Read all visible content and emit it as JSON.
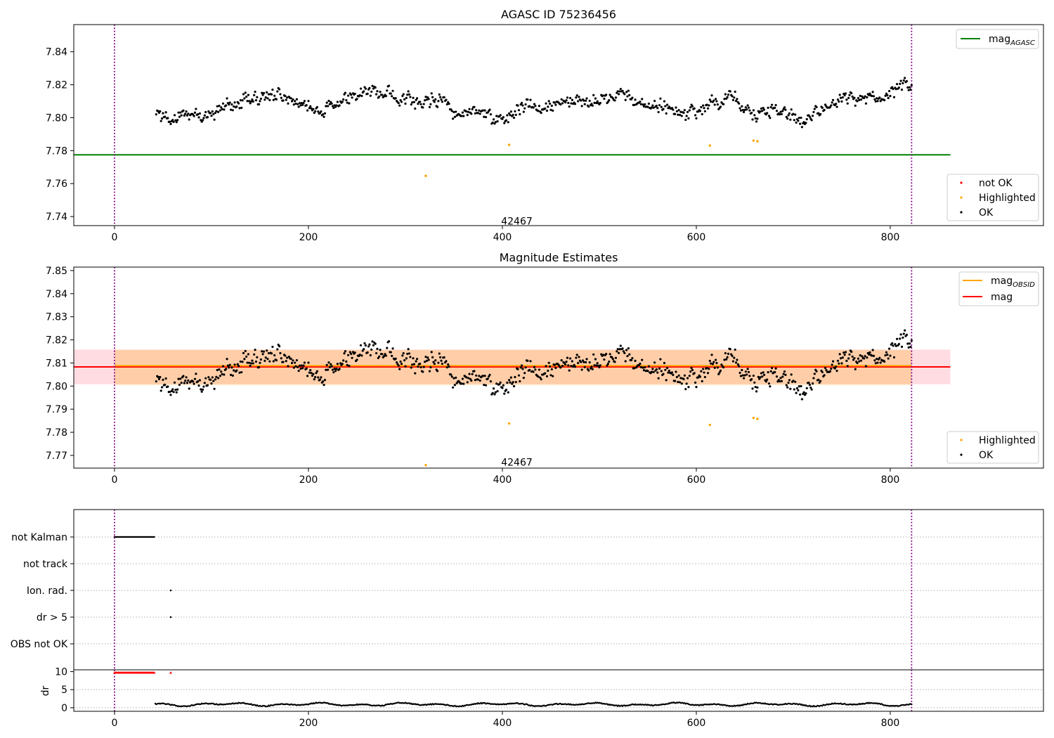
{
  "chart_data": [
    {
      "type": "scatter",
      "title": "AGASC ID 75236456",
      "xlim": [
        -42,
        958
      ],
      "ylim": [
        7.7345,
        7.8565
      ],
      "xticks": [
        0,
        200,
        400,
        600,
        800
      ],
      "yticks": [
        7.74,
        7.76,
        7.78,
        7.8,
        7.82,
        7.84
      ],
      "ytick_decimals": 2,
      "x_start": 43,
      "x_end": 822,
      "obs_lines": [
        0,
        822
      ],
      "obsid_label": "42467",
      "obsid_label_pos": [
        412,
        7.7365
      ],
      "mag_agasc": 7.7775,
      "mag_agasc_range": [
        -42,
        862
      ],
      "highlighted_points": [
        [
          321,
          7.7647
        ],
        [
          407,
          7.7835
        ],
        [
          614,
          7.7831
        ],
        [
          659,
          7.7861
        ],
        [
          663,
          7.7857
        ]
      ],
      "legend_lines": [
        {
          "label": "mag",
          "sub": "AGASC",
          "color": "#008000"
        }
      ],
      "legend_points": [
        {
          "label": "not OK",
          "color": "#ff0000"
        },
        {
          "label": "Highlighted",
          "color": "#ffa500"
        },
        {
          "label": "OK",
          "color": "#000000"
        }
      ],
      "colors": {
        "ok": "#000000",
        "highlighted": "#ffa500",
        "not_ok": "#ff0000"
      }
    },
    {
      "type": "scatter",
      "title": "Magnitude Estimates",
      "xlim": [
        -42,
        958
      ],
      "ylim": [
        7.7645,
        7.8515
      ],
      "xticks": [
        0,
        200,
        400,
        600,
        800
      ],
      "yticks": [
        7.77,
        7.78,
        7.79,
        7.8,
        7.81,
        7.82,
        7.83,
        7.84,
        7.85
      ],
      "ytick_decimals": 2,
      "obs_lines": [
        0,
        822
      ],
      "obsid_label": "42467",
      "obsid_label_pos": [
        412,
        7.7665
      ],
      "mag": 7.8083,
      "mag_band": [
        7.8008,
        7.8158
      ],
      "mag_band_range": [
        -42,
        862
      ],
      "mag_obsid": 7.8088,
      "mag_obsid_band": [
        7.8005,
        7.8157
      ],
      "mag_obsid_range": [
        0,
        822
      ],
      "highlighted_points": [
        [
          321,
          7.7658
        ],
        [
          407,
          7.7838
        ],
        [
          614,
          7.7832
        ],
        [
          659,
          7.7862
        ],
        [
          663,
          7.7858
        ]
      ],
      "legend_lines": [
        {
          "label": "mag",
          "sub": "OBSID",
          "color": "#ffa500"
        },
        {
          "label": "mag",
          "sub": "",
          "color": "#ff0000"
        }
      ],
      "legend_points": [
        {
          "label": "Highlighted",
          "color": "#ffa500"
        },
        {
          "label": "OK",
          "color": "#000000"
        }
      ],
      "colors": {
        "band_mag": "#ffc0cb",
        "band_obsid": "#ffa500"
      }
    },
    {
      "type": "scatter",
      "title": "",
      "xlim": [
        -42,
        958
      ],
      "flag_labels": [
        "not Kalman",
        "not track",
        "Ion. rad.",
        "dr > 5",
        "OBS not OK"
      ],
      "flags": {
        "not Kalman": {
          "x_from": 0,
          "x_to": 41
        },
        "not track": null,
        "Ion. rad.": {
          "x": [
            58
          ]
        },
        "dr > 5": {
          "x": [
            58
          ]
        },
        "OBS not OK": null
      },
      "obs_lines": [
        0,
        822
      ]
    },
    {
      "type": "scatter",
      "ylabel": "dr",
      "xlim": [
        -42,
        958
      ],
      "ylim": [
        -1,
        10.5
      ],
      "yticks": [
        0,
        5,
        10
      ],
      "xticks": [
        0,
        200,
        400,
        600,
        800
      ],
      "dr_high_value": 9.7,
      "dr_high_x_from": 0,
      "dr_high_x_to": 41,
      "dr_high_extra_x": 58,
      "dr_low_range": [
        42,
        822
      ],
      "obs_lines": [
        0,
        822
      ],
      "colors": {
        "dr_high": "#ff0000",
        "dr_low": "#000000"
      }
    }
  ]
}
